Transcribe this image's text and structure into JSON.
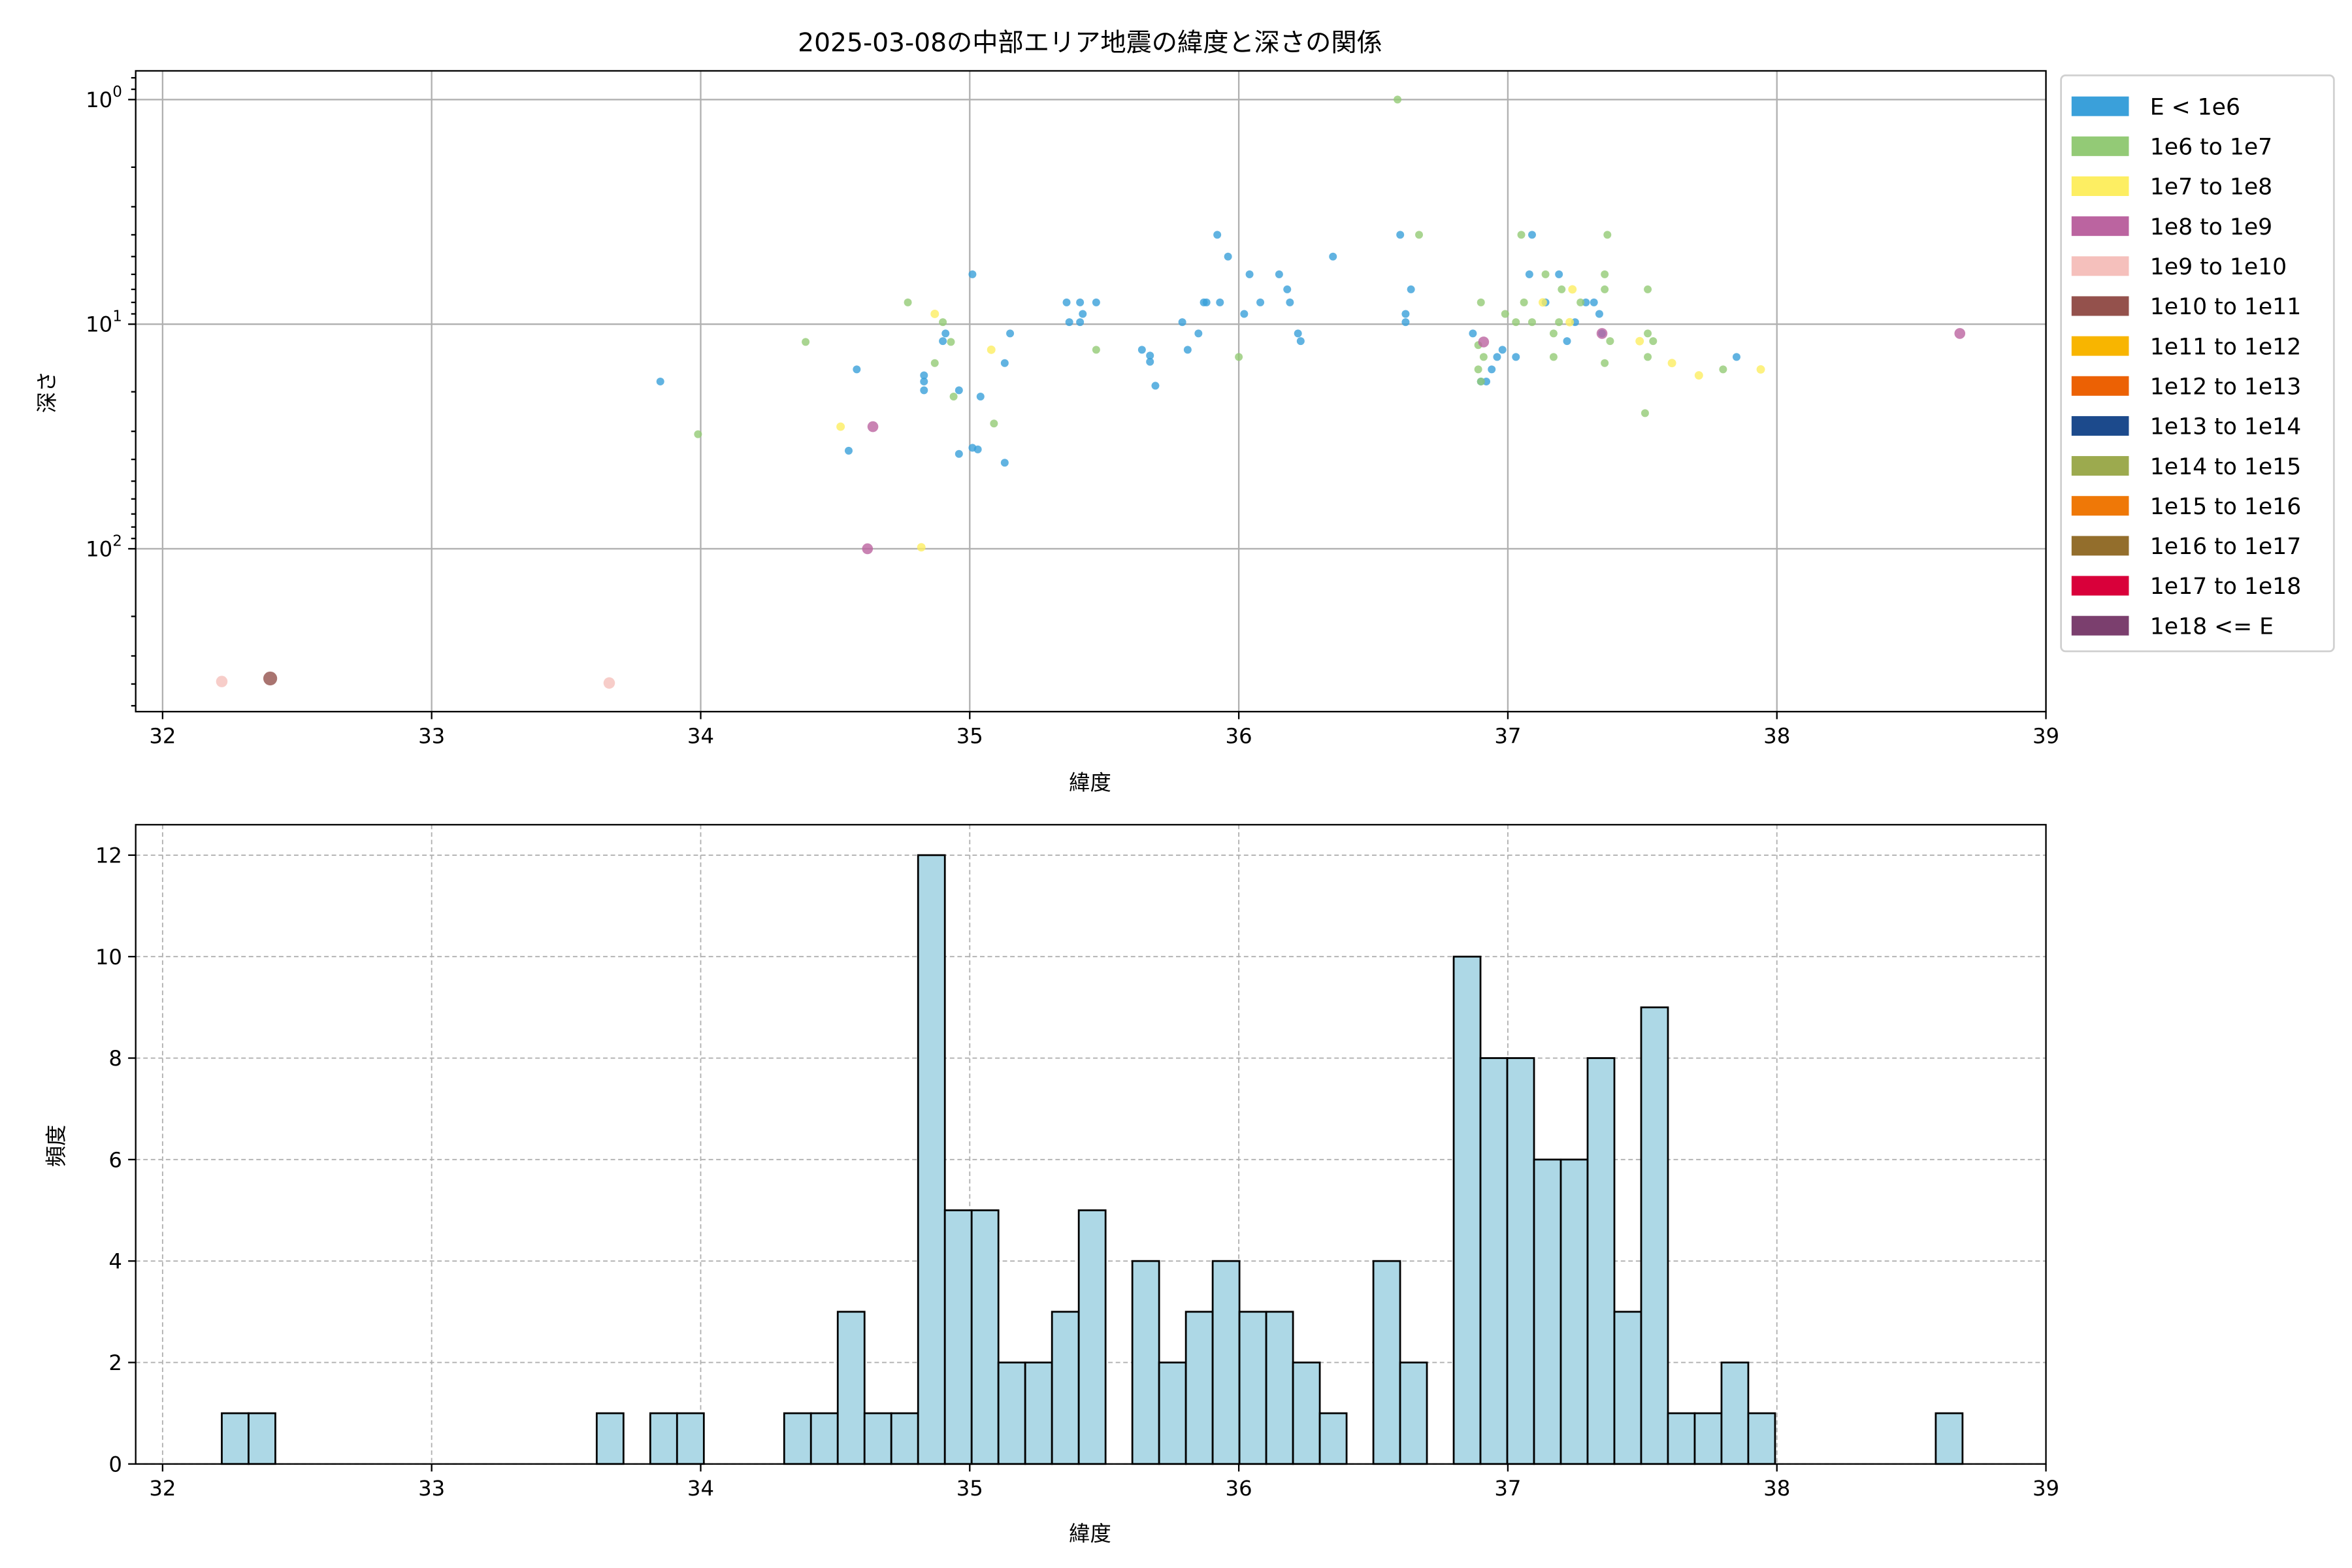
{
  "chart_data": [
    {
      "type": "scatter",
      "title": "2025-03-08の中部エリア地震の緯度と深さの関係",
      "xlabel": "緯度",
      "ylabel": "深さ",
      "xlim": [
        31.9,
        39.0
      ],
      "ylim": [
        0.745,
        531
      ],
      "yscale": "log",
      "y_inverted": true,
      "grid": true,
      "legend_placement": "outside-right",
      "xticks": [
        "32",
        "33",
        "34",
        "35",
        "36",
        "37",
        "38",
        "39"
      ],
      "xtick_values": [
        32,
        33,
        34,
        35,
        36,
        37,
        38,
        39
      ],
      "yticks": [
        {
          "value": 1,
          "base": "10",
          "exp": "0"
        },
        {
          "value": 10,
          "base": "10",
          "exp": "1"
        },
        {
          "value": 100,
          "base": "10",
          "exp": "2"
        }
      ],
      "legend": [
        {
          "label": "E < 1e6",
          "color": "#3aa0da"
        },
        {
          "label": "1e6 to 1e7",
          "color": "#93ca76"
        },
        {
          "label": "1e7 to 1e8",
          "color": "#fdee62"
        },
        {
          "label": "1e8 to 1e9",
          "color": "#bb64a0"
        },
        {
          "label": "1e9 to 1e10",
          "color": "#f5c0bc"
        },
        {
          "label": "1e10 to 1e11",
          "color": "#94514c"
        },
        {
          "label": "1e11 to 1e12",
          "color": "#f8b500"
        },
        {
          "label": "1e12 to 1e13",
          "color": "#ec6104"
        },
        {
          "label": "1e13 to 1e14",
          "color": "#1c4a8c"
        },
        {
          "label": "1e14 to 1e15",
          "color": "#9caa4e"
        },
        {
          "label": "1e15 to 1e16",
          "color": "#ef7807"
        },
        {
          "label": "1e16 to 1e17",
          "color": "#936e2c"
        },
        {
          "label": "1e17 to 1e18",
          "color": "#d9003a"
        },
        {
          "label": "1e18 <= E",
          "color": "#7b3f6e"
        }
      ],
      "series": [
        {
          "name": "E < 1e6",
          "color": "#3aa0da",
          "points": [
            [
              33.85,
              18.0
            ],
            [
              34.58,
              15.9
            ],
            [
              34.55,
              36.6
            ],
            [
              34.83,
              16.9
            ],
            [
              34.83,
              18.0
            ],
            [
              34.83,
              19.7
            ],
            [
              34.9,
              11.9
            ],
            [
              34.91,
              11.0
            ],
            [
              34.96,
              19.7
            ],
            [
              35.01,
              35.5
            ],
            [
              35.03,
              36.1
            ],
            [
              34.96,
              37.8
            ],
            [
              35.04,
              21.0
            ],
            [
              35.01,
              6.0
            ],
            [
              35.13,
              41.4
            ],
            [
              35.13,
              14.9
            ],
            [
              35.15,
              11.0
            ],
            [
              35.36,
              8.0
            ],
            [
              35.37,
              9.8
            ],
            [
              35.41,
              8.0
            ],
            [
              35.42,
              9.0
            ],
            [
              35.41,
              9.8
            ],
            [
              35.47,
              8.0
            ],
            [
              35.64,
              13.0
            ],
            [
              35.67,
              13.8
            ],
            [
              35.67,
              14.7
            ],
            [
              35.69,
              18.8
            ],
            [
              35.79,
              9.8
            ],
            [
              35.81,
              13.0
            ],
            [
              35.85,
              11.0
            ],
            [
              35.87,
              8.0
            ],
            [
              35.88,
              8.0
            ],
            [
              35.92,
              4.0
            ],
            [
              35.93,
              8.0
            ],
            [
              35.96,
              5.0
            ],
            [
              36.02,
              9.0
            ],
            [
              36.04,
              6.0
            ],
            [
              36.08,
              8.0
            ],
            [
              36.15,
              6.0
            ],
            [
              36.18,
              7.0
            ],
            [
              36.19,
              8.0
            ],
            [
              36.22,
              11.0
            ],
            [
              36.23,
              11.9
            ],
            [
              36.35,
              5.0
            ],
            [
              36.6,
              4.0
            ],
            [
              36.62,
              9.0
            ],
            [
              36.62,
              9.8
            ],
            [
              36.64,
              7.0
            ],
            [
              36.87,
              11.0
            ],
            [
              36.9,
              18.0
            ],
            [
              36.92,
              18.0
            ],
            [
              36.94,
              15.9
            ],
            [
              36.98,
              13.0
            ],
            [
              37.09,
              4.0
            ],
            [
              37.08,
              6.0
            ],
            [
              37.14,
              8.0
            ],
            [
              37.19,
              6.0
            ],
            [
              37.22,
              11.9
            ],
            [
              37.25,
              9.8
            ],
            [
              37.29,
              8.0
            ],
            [
              37.32,
              8.0
            ],
            [
              37.34,
              9.0
            ],
            [
              37.35,
              11.0
            ],
            [
              37.85,
              14.0
            ],
            [
              37.03,
              14.0
            ],
            [
              36.96,
              14.0
            ]
          ]
        },
        {
          "name": "1e6 to 1e7",
          "color": "#93ca76",
          "points": [
            [
              33.99,
              30.9
            ],
            [
              34.39,
              12.0
            ],
            [
              34.77,
              8.0
            ],
            [
              34.87,
              14.9
            ],
            [
              34.9,
              9.8
            ],
            [
              34.93,
              12.0
            ],
            [
              34.94,
              21.0
            ],
            [
              35.09,
              27.7
            ],
            [
              35.47,
              13.0
            ],
            [
              36.0,
              14.0
            ],
            [
              36.59,
              1.0
            ],
            [
              36.67,
              4.0
            ],
            [
              36.9,
              8.0
            ],
            [
              36.89,
              15.9
            ],
            [
              36.91,
              14.0
            ],
            [
              36.9,
              18.0
            ],
            [
              36.99,
              9.0
            ],
            [
              37.05,
              4.0
            ],
            [
              37.06,
              8.0
            ],
            [
              37.09,
              9.8
            ],
            [
              37.14,
              6.0
            ],
            [
              37.17,
              14.0
            ],
            [
              37.19,
              9.8
            ],
            [
              37.2,
              7.0
            ],
            [
              37.27,
              8.0
            ],
            [
              37.36,
              6.0
            ],
            [
              37.37,
              4.0
            ],
            [
              37.36,
              7.0
            ],
            [
              37.36,
              14.9
            ],
            [
              37.38,
              11.9
            ],
            [
              37.51,
              24.9
            ],
            [
              37.52,
              7.0
            ],
            [
              37.52,
              11.0
            ],
            [
              37.52,
              14.0
            ],
            [
              37.54,
              11.9
            ],
            [
              37.8,
              15.9
            ],
            [
              36.89,
              12.4
            ],
            [
              37.03,
              9.8
            ],
            [
              37.17,
              11.0
            ]
          ]
        },
        {
          "name": "1e7 to 1e8",
          "color": "#fdee62",
          "points": [
            [
              34.52,
              28.6
            ],
            [
              34.82,
              98.5
            ],
            [
              34.87,
              9.0
            ],
            [
              35.08,
              13.0
            ],
            [
              37.24,
              7.0
            ],
            [
              37.13,
              8.0
            ],
            [
              37.23,
              9.8
            ],
            [
              37.49,
              11.9
            ],
            [
              37.61,
              14.9
            ],
            [
              37.71,
              16.9
            ],
            [
              37.94,
              15.9
            ]
          ]
        },
        {
          "name": "1e8 to 1e9",
          "color": "#bb64a0",
          "points": [
            [
              34.62,
              100
            ],
            [
              34.64,
              28.6
            ],
            [
              36.91,
              12.0
            ],
            [
              37.35,
              11.0
            ],
            [
              38.68,
              11.0
            ]
          ]
        },
        {
          "name": "1e9 to 1e10",
          "color": "#f5c0bc",
          "points": [
            [
              32.22,
              390
            ],
            [
              33.66,
              396
            ]
          ]
        },
        {
          "name": "1e10 to 1e11",
          "color": "#94514c",
          "points": [
            [
              32.4,
              378
            ]
          ]
        }
      ]
    },
    {
      "type": "bar",
      "subtype": "histogram",
      "xlabel": "緯度",
      "ylabel": "頻度",
      "xlim": [
        31.9,
        39.0
      ],
      "ylim": [
        0,
        12.6
      ],
      "grid": true,
      "bar_color": "#add8e6",
      "edge_color": "#000000",
      "xticks": [
        "32",
        "33",
        "34",
        "35",
        "36",
        "37",
        "38",
        "39"
      ],
      "xtick_values": [
        32,
        33,
        34,
        35,
        36,
        37,
        38,
        39
      ],
      "yticks": [
        "0",
        "2",
        "4",
        "6",
        "8",
        "10",
        "12"
      ],
      "ytick_values": [
        0,
        2,
        4,
        6,
        8,
        10,
        12
      ],
      "bin_range": [
        32.22,
        38.69
      ],
      "counts": [
        1,
        1,
        0,
        0,
        0,
        0,
        0,
        0,
        0,
        0,
        0,
        0,
        0,
        0,
        1,
        0,
        1,
        1,
        0,
        0,
        0,
        1,
        1,
        3,
        1,
        1,
        12,
        5,
        5,
        2,
        2,
        3,
        5,
        0,
        4,
        2,
        3,
        4,
        3,
        3,
        2,
        1,
        0,
        4,
        2,
        0,
        10,
        8,
        8,
        6,
        6,
        8,
        3,
        9,
        1,
        1,
        2,
        1,
        0,
        0,
        0,
        0,
        0,
        0,
        1
      ]
    }
  ]
}
